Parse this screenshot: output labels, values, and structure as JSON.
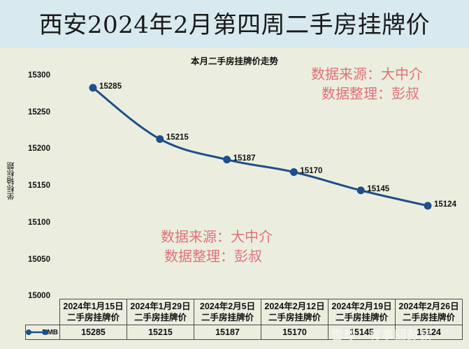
{
  "header": {
    "title": "西安2024年2月第四周二手房挂牌价"
  },
  "watermarks": {
    "top": {
      "line1": "数据来源：大中介",
      "line2": "数据整理：彭叔"
    },
    "mid": {
      "line1": "数据来源：大中介",
      "line2": "数据整理：彭叔"
    },
    "footer": "雪球：有事回彭叔"
  },
  "colors": {
    "series": "#1f4e8c",
    "title_band": "#d8e9ef",
    "plot_bg": "#ebeedf",
    "watermark": "#e0707a"
  },
  "chart_data": {
    "type": "line",
    "title": "本月二手房挂牌价走势",
    "xlabel": "",
    "ylabel": "坐标轴标题",
    "ylim": [
      15000,
      15300
    ],
    "yticks": [
      "15300",
      "15250",
      "15200",
      "15150",
      "15100",
      "15050",
      "15000"
    ],
    "categories": [
      "2024年1月15日二手房挂牌价",
      "2024年1月29日二手房挂牌价",
      "2024年2月5日二手房挂牌价",
      "2024年2月12日二手房挂牌价",
      "2024年2月19日二手房挂牌价",
      "2024年2月26日二手房挂牌价"
    ],
    "series": [
      {
        "name": "RMB",
        "values": [
          15285,
          15215,
          15187,
          15170,
          15145,
          15124
        ]
      }
    ],
    "grid": false,
    "legend_position": "data-table",
    "data_table": {
      "headers": [
        {
          "line1": "2024年1月15日",
          "line2": "二手房挂牌价"
        },
        {
          "line1": "2024年1月29日",
          "line2": "二手房挂牌价"
        },
        {
          "line1": "2024年2月5日",
          "line2": "二手房挂牌价"
        },
        {
          "line1": "2024年2月12日",
          "line2": "二手房挂牌价"
        },
        {
          "line1": "2024年2月19日",
          "line2": "二手房挂牌价"
        },
        {
          "line1": "2024年2月26日",
          "line2": "二手房挂牌价"
        }
      ],
      "legend_label": "RMB",
      "values": [
        "15285",
        "15215",
        "15187",
        "15170",
        "15145",
        "15124"
      ]
    }
  }
}
